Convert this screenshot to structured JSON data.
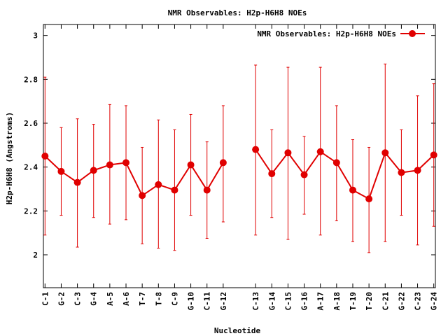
{
  "chart_data": {
    "type": "line",
    "title": "NMR Observables: H2p-H6H8 NOEs",
    "xlabel": "Nucleotide",
    "ylabel": "H2p-H6H8 (Angstroms)",
    "ylim": [
      1.85,
      3.05
    ],
    "yticks": [
      "2",
      "2.2",
      "2.4",
      "2.6",
      "2.8",
      "3"
    ],
    "legend_position": "top-right",
    "grid": false,
    "color": "#e00000",
    "series": [
      {
        "name": "NMR Observables: H2p-H6H8 NOEs",
        "points": [
          {
            "label": "C-1",
            "pos": 1,
            "y": 2.45,
            "lo": 2.09,
            "hi": 2.81
          },
          {
            "label": "G-2",
            "pos": 2,
            "y": 2.38,
            "lo": 2.18,
            "hi": 2.58
          },
          {
            "label": "C-3",
            "pos": 3,
            "y": 2.33,
            "lo": 2.035,
            "hi": 2.62
          },
          {
            "label": "G-4",
            "pos": 4,
            "y": 2.385,
            "lo": 2.17,
            "hi": 2.595
          },
          {
            "label": "A-5",
            "pos": 5,
            "y": 2.41,
            "lo": 2.14,
            "hi": 2.685
          },
          {
            "label": "A-6",
            "pos": 6,
            "y": 2.42,
            "lo": 2.16,
            "hi": 2.68
          },
          {
            "label": "T-7",
            "pos": 7,
            "y": 2.27,
            "lo": 2.05,
            "hi": 2.49
          },
          {
            "label": "T-8",
            "pos": 8,
            "y": 2.32,
            "lo": 2.03,
            "hi": 2.615
          },
          {
            "label": "C-9",
            "pos": 9,
            "y": 2.295,
            "lo": 2.02,
            "hi": 2.57
          },
          {
            "label": "G-10",
            "pos": 10,
            "y": 2.41,
            "lo": 2.18,
            "hi": 2.64
          },
          {
            "label": "C-11",
            "pos": 11,
            "y": 2.295,
            "lo": 2.075,
            "hi": 2.515
          },
          {
            "label": "G-12",
            "pos": 12,
            "y": 2.42,
            "lo": 2.15,
            "hi": 2.68
          },
          {
            "label": "C-13",
            "pos": 14,
            "y": 2.48,
            "lo": 2.09,
            "hi": 2.865
          },
          {
            "label": "G-14",
            "pos": 15,
            "y": 2.37,
            "lo": 2.17,
            "hi": 2.57
          },
          {
            "label": "C-15",
            "pos": 16,
            "y": 2.465,
            "lo": 2.07,
            "hi": 2.855
          },
          {
            "label": "G-16",
            "pos": 17,
            "y": 2.365,
            "lo": 2.185,
            "hi": 2.54
          },
          {
            "label": "A-17",
            "pos": 18,
            "y": 2.47,
            "lo": 2.09,
            "hi": 2.855
          },
          {
            "label": "A-18",
            "pos": 19,
            "y": 2.42,
            "lo": 2.155,
            "hi": 2.68
          },
          {
            "label": "T-19",
            "pos": 20,
            "y": 2.295,
            "lo": 2.06,
            "hi": 2.525
          },
          {
            "label": "T-20",
            "pos": 21,
            "y": 2.255,
            "lo": 2.01,
            "hi": 2.49
          },
          {
            "label": "C-21",
            "pos": 22,
            "y": 2.465,
            "lo": 2.06,
            "hi": 2.87
          },
          {
            "label": "G-22",
            "pos": 23,
            "y": 2.375,
            "lo": 2.18,
            "hi": 2.57
          },
          {
            "label": "C-23",
            "pos": 24,
            "y": 2.385,
            "lo": 2.045,
            "hi": 2.725
          },
          {
            "label": "G-24",
            "pos": 25,
            "y": 2.455,
            "lo": 2.13,
            "hi": 2.78
          }
        ]
      }
    ]
  }
}
